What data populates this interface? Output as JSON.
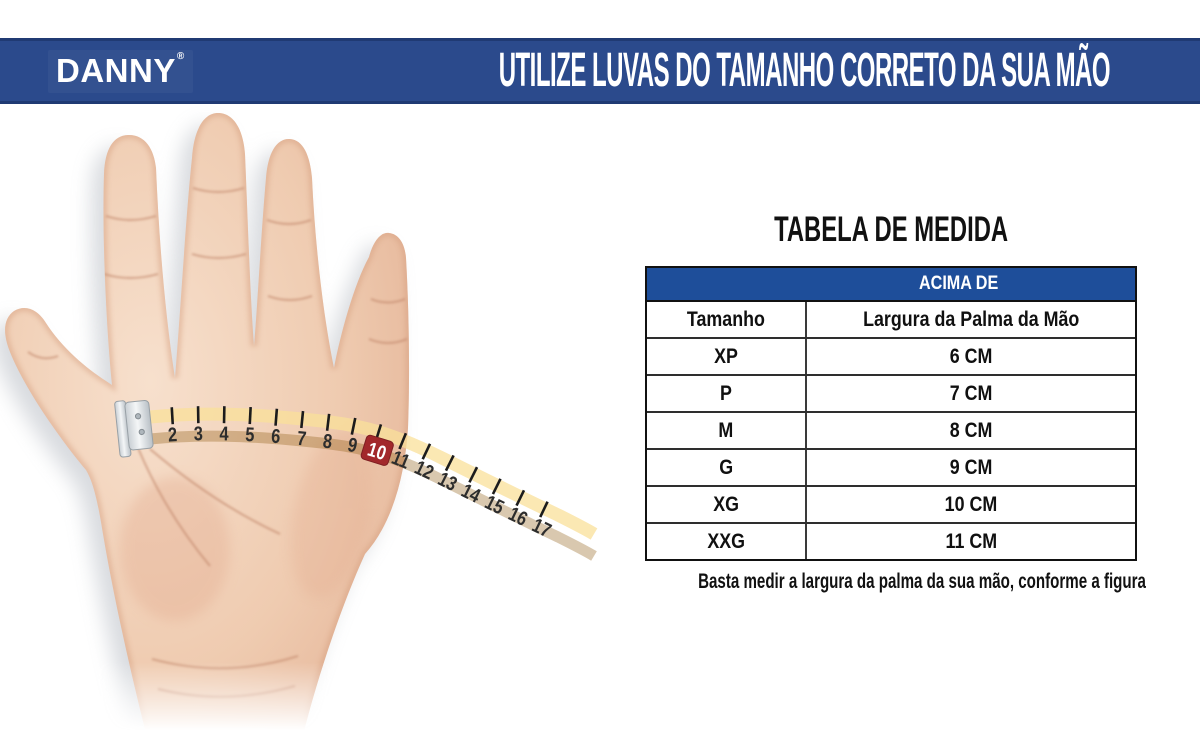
{
  "banner": {
    "logo": "DANNY",
    "logo_reg": "®",
    "title": "UTILIZE LUVAS DO TAMANHO CORRETO DA SUA MÃO"
  },
  "figure": {
    "description": "open hand with yellow measuring tape across the palm",
    "tape_numbers": [
      2,
      3,
      4,
      5,
      6,
      7,
      8,
      9,
      10,
      11,
      12,
      13,
      14,
      15,
      16,
      17
    ],
    "tape_highlight": 10
  },
  "table": {
    "title": "TABELA DE MEDIDA",
    "header": "ACIMA DE",
    "columns": [
      "Tamanho",
      "Largura da Palma da Mão"
    ],
    "rows": [
      [
        "XP",
        "6 CM"
      ],
      [
        "P",
        "7 CM"
      ],
      [
        "M",
        "8 CM"
      ],
      [
        "G",
        "9 CM"
      ],
      [
        "XG",
        "10 CM"
      ],
      [
        "XXG",
        "11 CM"
      ]
    ],
    "caption": "Basta medir a largura da palma da sua mão, conforme a figura"
  },
  "colors": {
    "banner_blue": "#2b4a8c",
    "table_header_blue": "#1e4e9a",
    "tape_yellow": "#e6b842",
    "tape_highlight_red": "#a2282b",
    "skin_tone": "#efcbb0"
  }
}
